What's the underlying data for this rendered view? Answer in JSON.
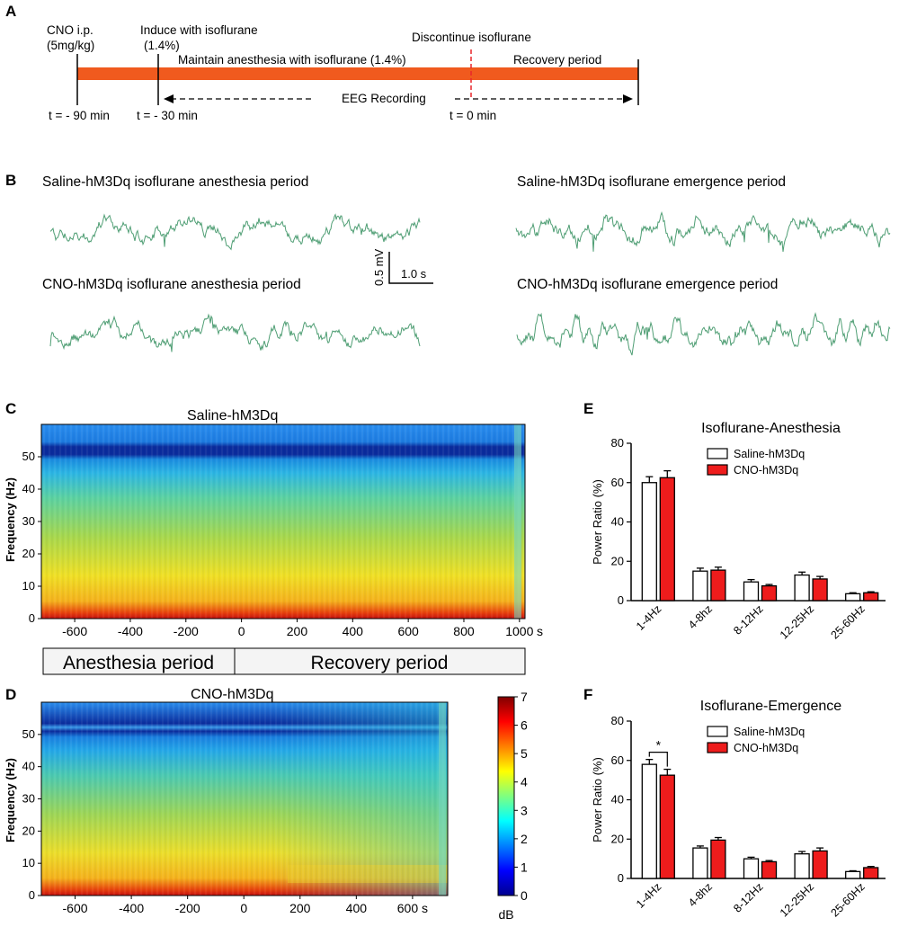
{
  "panel_labels": {
    "A": "A",
    "B": "B",
    "C": "C",
    "D": "D",
    "E": "E",
    "F": "F"
  },
  "timeline": {
    "cno": "CNO i.p.",
    "dose": "(5mg/kg)",
    "induce": "Induce with isoflurane",
    "induce_pct": "(1.4%)",
    "discontinue": "Discontinue  isoflurane",
    "maintain": "Maintain anesthesia with isoflurane (1.4%)",
    "recovery": "Recovery period",
    "eeg": "EEG Recording",
    "t1": "t = - 90 min",
    "t2": "t = - 30 min",
    "t3": "t = 0 min",
    "colors": {
      "bar": "#f05a1e",
      "marker": "#e8262b"
    }
  },
  "traces": {
    "titles": [
      "Saline-hM3Dq isoflurane anesthesia period",
      "Saline-hM3Dq isoflurane emergence period",
      "CNO-hM3Dq isoflurane anesthesia period",
      "CNO-hM3Dq isoflurane emergence period"
    ],
    "scale_v": "0.5 mV",
    "scale_t": "1.0 s",
    "color": "#4f9e74"
  },
  "spectrograms": {
    "c_title": "Saline-hM3Dq",
    "d_title": "CNO-hM3Dq",
    "ylabel": "Frequency (Hz)",
    "y_ticks": [
      "0",
      "10",
      "20",
      "30",
      "40",
      "50"
    ],
    "c_x_ticks": [
      "-600",
      "-400",
      "-200",
      "0",
      "200",
      "400",
      "600",
      "800",
      "1000"
    ],
    "c_x_unit": "s",
    "d_x_ticks": [
      "-600",
      "-400",
      "-200",
      "0",
      "200",
      "400",
      "600 s"
    ],
    "period_anesthesia": "Anesthesia period",
    "period_recovery": "Recovery period",
    "colorbar_ticks": [
      "0",
      "1",
      "2",
      "3",
      "4",
      "5",
      "6",
      "7"
    ],
    "colorbar_unit": "dB"
  },
  "chart_data": [
    {
      "type": "bar",
      "title": "Isoflurane-Anesthesia",
      "xlabel": "",
      "ylabel": "Power Ratio (%)",
      "ylim": [
        0,
        80
      ],
      "y_ticks": [
        "0",
        "20",
        "40",
        "60",
        "80"
      ],
      "categories": [
        "1-4Hz",
        "4-8hz",
        "8-12Hz",
        "12-25Hz",
        "25-60Hz"
      ],
      "series": [
        {
          "name": "Saline-hM3Dq",
          "color": "#ffffff",
          "values": [
            60,
            15,
            9.5,
            13,
            3.5
          ],
          "errors": [
            3,
            1.5,
            1.2,
            1.5,
            0.5
          ]
        },
        {
          "name": "CNO-hM3Dq",
          "color": "#ee1c1c",
          "values": [
            62.5,
            15.5,
            7.5,
            11,
            4
          ],
          "errors": [
            3.5,
            1.5,
            0.7,
            1.3,
            0.5
          ]
        }
      ],
      "legend": "top-right",
      "annotations": []
    },
    {
      "type": "bar",
      "title": "Isoflurane-Emergence",
      "xlabel": "",
      "ylabel": "Power Ratio (%)",
      "ylim": [
        0,
        80
      ],
      "y_ticks": [
        "0",
        "20",
        "40",
        "60",
        "80"
      ],
      "categories": [
        "1-4Hz",
        "4-8hz",
        "8-12Hz",
        "12-25Hz",
        "25-60Hz"
      ],
      "series": [
        {
          "name": "Saline-hM3Dq",
          "color": "#ffffff",
          "values": [
            58,
            15.5,
            10,
            12.5,
            3.5
          ],
          "errors": [
            2.5,
            1,
            0.8,
            1.2,
            0.4
          ]
        },
        {
          "name": "CNO-hM3Dq",
          "color": "#ee1c1c",
          "values": [
            52.5,
            19.5,
            8.5,
            14,
            5.5
          ],
          "errors": [
            3,
            1.3,
            0.6,
            1.5,
            0.6
          ]
        }
      ],
      "legend": "top-right",
      "annotations": [
        "*"
      ]
    }
  ]
}
